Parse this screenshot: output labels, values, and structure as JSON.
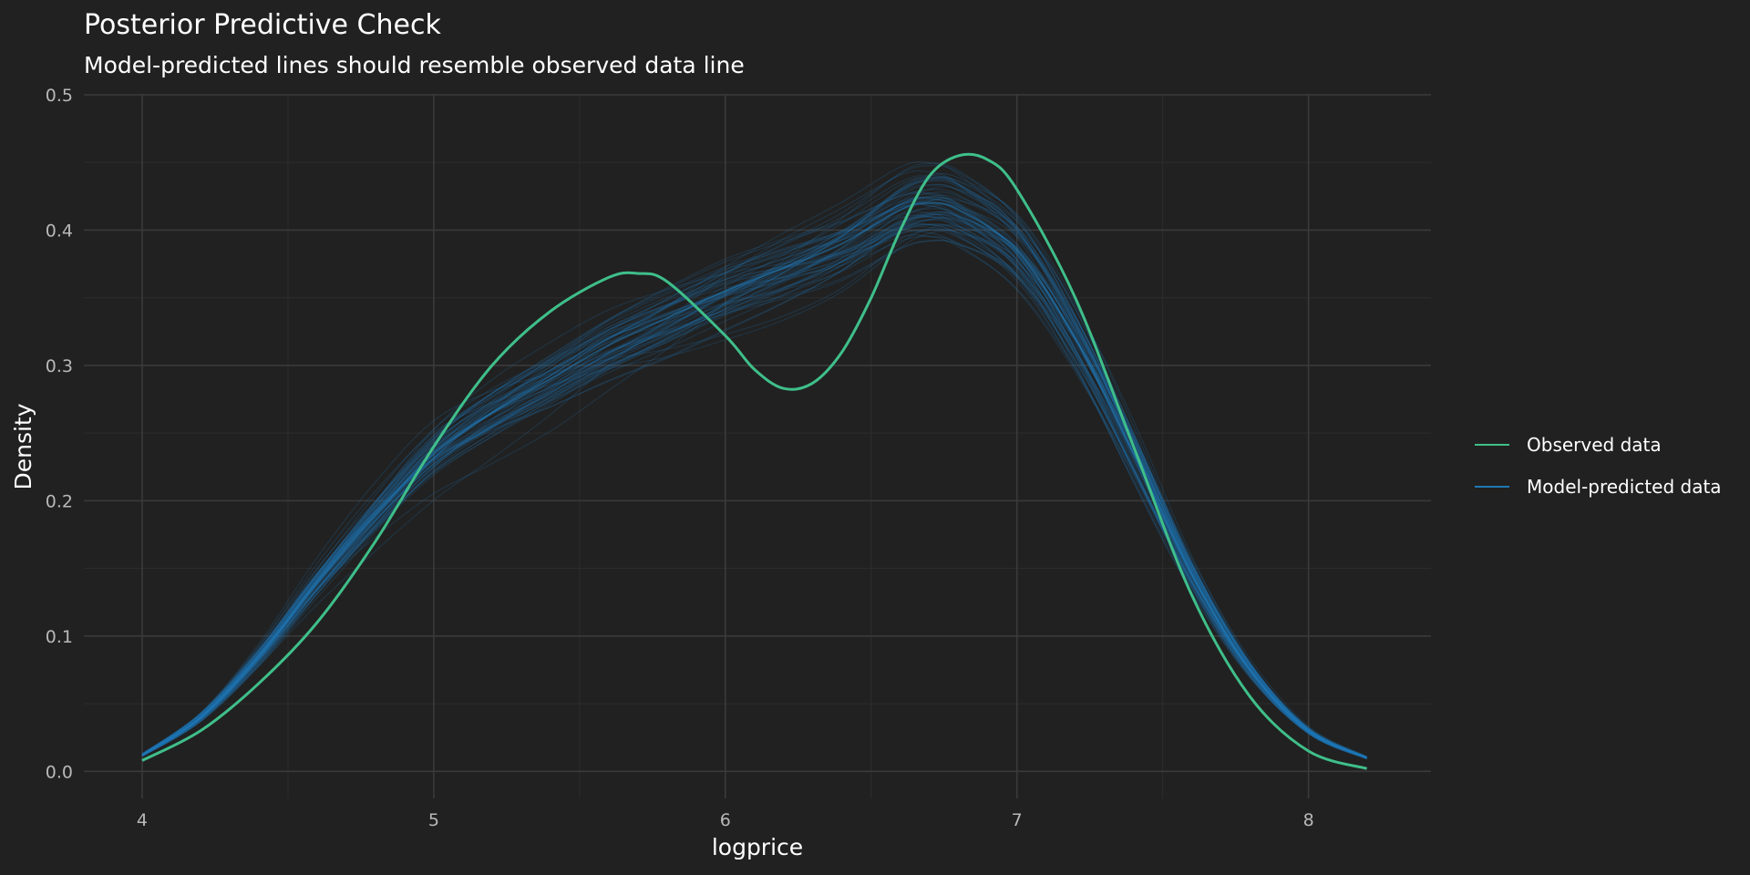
{
  "chart_data": {
    "type": "line",
    "title": "Posterior Predictive Check",
    "subtitle": "Model-predicted lines should resemble observed data line",
    "xlabel": "logprice",
    "ylabel": "Density",
    "xlim": [
      3.8,
      8.42
    ],
    "ylim": [
      -0.02,
      0.5
    ],
    "xticks": [
      4,
      5,
      6,
      7,
      8
    ],
    "yticks": [
      0.0,
      0.1,
      0.2,
      0.3,
      0.4,
      0.5
    ],
    "ytick_labels": [
      "0.0",
      "0.1",
      "0.2",
      "0.3",
      "0.4",
      "0.5"
    ],
    "grid": true,
    "legend_position": "right",
    "legend": [
      "Observed data",
      "Model-predicted data"
    ],
    "series": [
      {
        "name": "Observed data",
        "color": "#3fbf8a",
        "x": [
          4.0,
          4.2,
          4.4,
          4.6,
          4.8,
          5.0,
          5.2,
          5.4,
          5.6,
          5.7,
          5.8,
          6.0,
          6.1,
          6.2,
          6.3,
          6.4,
          6.5,
          6.6,
          6.7,
          6.8,
          6.9,
          7.0,
          7.2,
          7.4,
          7.6,
          7.8,
          8.0,
          8.2
        ],
        "y": [
          0.008,
          0.03,
          0.065,
          0.11,
          0.17,
          0.24,
          0.3,
          0.34,
          0.365,
          0.368,
          0.362,
          0.322,
          0.297,
          0.283,
          0.287,
          0.31,
          0.35,
          0.4,
          0.44,
          0.455,
          0.452,
          0.43,
          0.35,
          0.24,
          0.13,
          0.055,
          0.015,
          0.002
        ]
      },
      {
        "name": "Model-predicted data",
        "color": "#1f78b4",
        "x": [
          4.0,
          4.2,
          4.4,
          4.6,
          4.8,
          5.0,
          5.2,
          5.4,
          5.6,
          5.8,
          6.0,
          6.2,
          6.4,
          6.6,
          6.7,
          6.8,
          7.0,
          7.2,
          7.4,
          7.6,
          7.8,
          8.0,
          8.2
        ],
        "y": [
          0.012,
          0.04,
          0.085,
          0.14,
          0.19,
          0.235,
          0.265,
          0.29,
          0.315,
          0.335,
          0.355,
          0.372,
          0.39,
          0.415,
          0.42,
          0.415,
          0.385,
          0.32,
          0.235,
          0.145,
          0.075,
          0.03,
          0.01
        ]
      }
    ]
  }
}
